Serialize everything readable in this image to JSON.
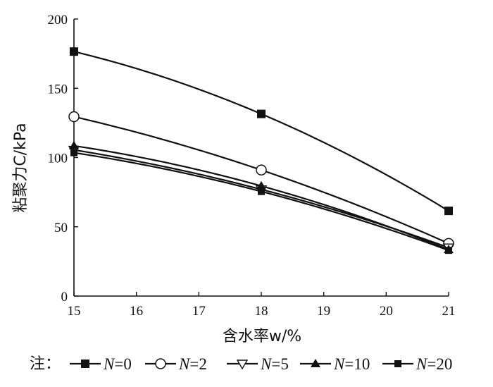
{
  "chart_data": {
    "type": "line",
    "xlabel": "含水率w/%",
    "ylabel": "粘聚力C/kPa",
    "xlim": [
      15,
      21
    ],
    "ylim": [
      0,
      200
    ],
    "xticks": [
      "15",
      "16",
      "17",
      "18",
      "19",
      "20",
      "21"
    ],
    "yticks": [
      "0",
      "50",
      "100",
      "150",
      "200"
    ],
    "grid": false,
    "legend_position": "bottom",
    "legend_prefix": "注：",
    "x": [
      15,
      18,
      21
    ],
    "series": [
      {
        "name_var": "N",
        "name_value": "=0",
        "marker": "square-filled",
        "values": [
          176.5,
          131.5,
          61.5
        ]
      },
      {
        "name_var": "N",
        "name_value": "=2",
        "marker": "circle-open",
        "values": [
          129.5,
          91,
          38
        ]
      },
      {
        "name_var": "N",
        "name_value": "=5",
        "marker": "triangle-down-open",
        "values": [
          105.5,
          77,
          35
        ]
      },
      {
        "name_var": "N",
        "name_value": "=10",
        "marker": "triangle-up-filled",
        "values": [
          108.5,
          79.5,
          33.5
        ]
      },
      {
        "name_var": "N",
        "name_value": "=20",
        "marker": "square-small-filled",
        "values": [
          103.5,
          75.5,
          33
        ]
      }
    ]
  }
}
